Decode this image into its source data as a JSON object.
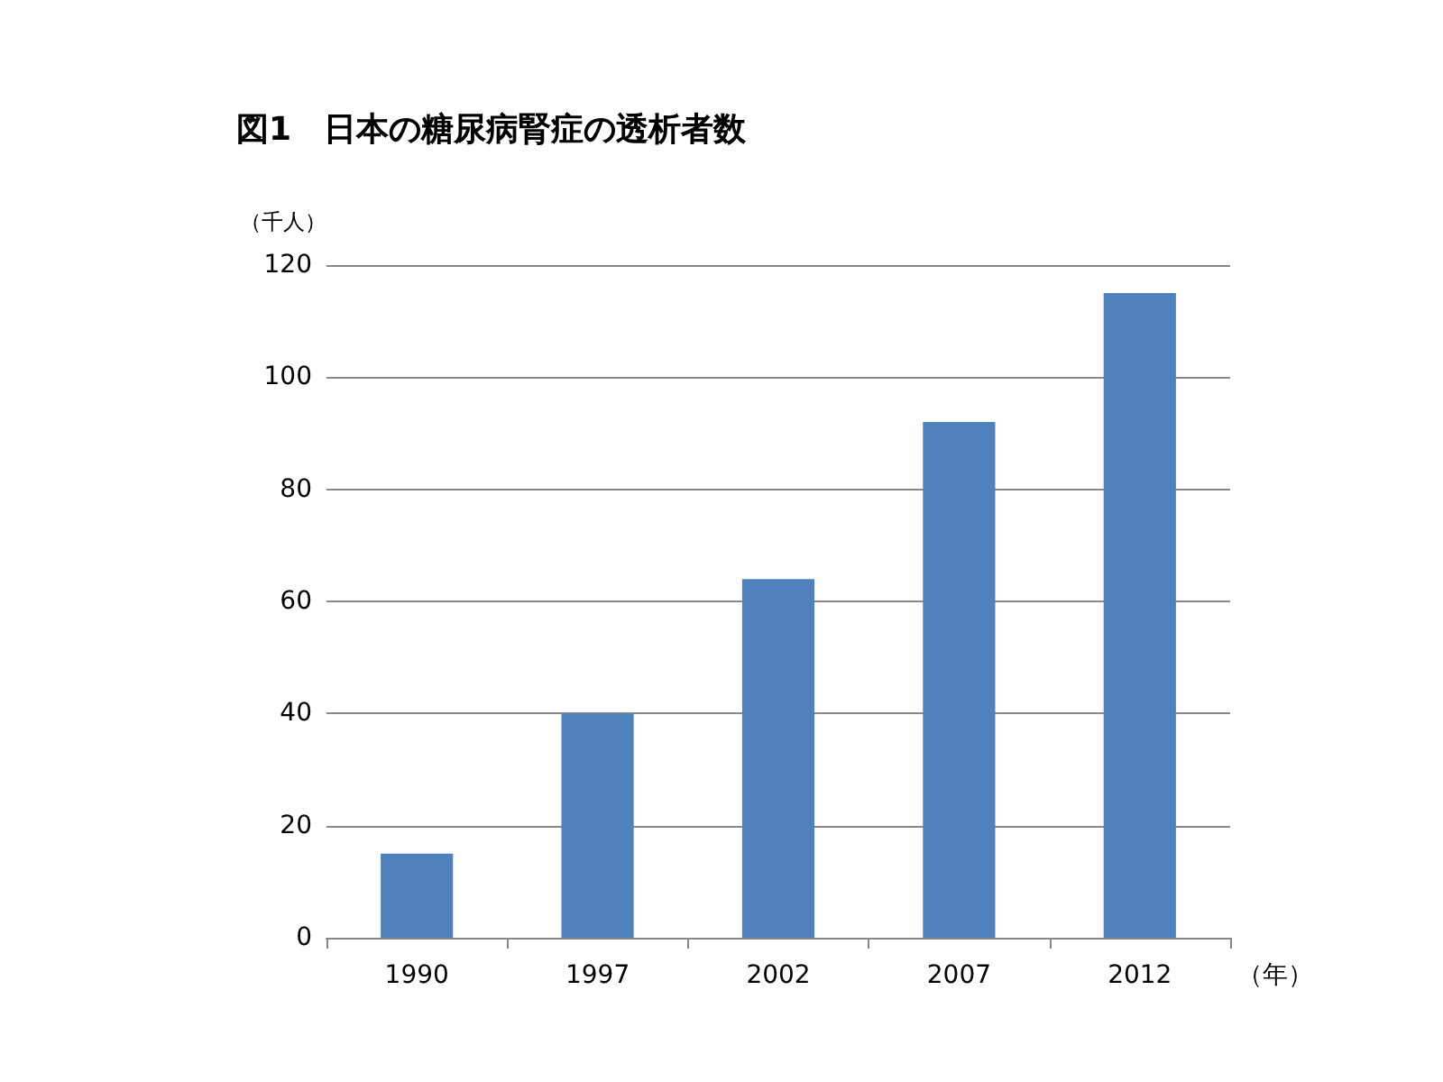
{
  "chart_data": {
    "type": "bar",
    "title": "図1　日本の糖尿病腎症の透析者数",
    "ylabel": "（千人）",
    "xlabel": "（年）",
    "categories": [
      "1990",
      "1997",
      "2002",
      "2007",
      "2012"
    ],
    "values": [
      15,
      40,
      64,
      92,
      115
    ],
    "color": "#4f81bd",
    "ylim": [
      0,
      120
    ],
    "yticks": [
      0,
      20,
      40,
      60,
      80,
      100,
      120
    ],
    "grid": "y"
  }
}
